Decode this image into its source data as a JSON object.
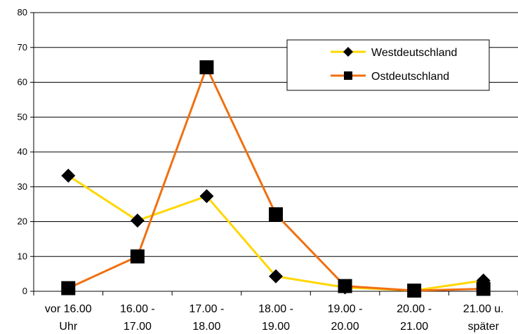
{
  "chart_data": {
    "type": "line",
    "title": "",
    "xlabel": "",
    "ylabel": "",
    "ylim": [
      0,
      80
    ],
    "yticks": [
      0,
      10,
      20,
      30,
      40,
      50,
      60,
      70,
      80
    ],
    "grid": "horizontal",
    "legend_position": "top-right",
    "categories": [
      [
        "vor 16.00",
        "Uhr"
      ],
      [
        "16.00 -",
        "17.00"
      ],
      [
        "17.00 -",
        "18.00"
      ],
      [
        "18.00 -",
        "19.00"
      ],
      [
        "19.00 -",
        "20.00"
      ],
      [
        "20.00 -",
        "21.00"
      ],
      [
        "21.00 u.",
        "später"
      ]
    ],
    "series": [
      {
        "name": "Westdeutschland",
        "color": "#FFD700",
        "marker": "diamond",
        "values": [
          33.2,
          20.3,
          27.3,
          4.3,
          1.1,
          0.2,
          3.1
        ]
      },
      {
        "name": "Ostdeutschland",
        "color": "#F07010",
        "marker": "square",
        "values": [
          0.9,
          10.0,
          64.3,
          22.1,
          1.5,
          0.2,
          0.7
        ]
      }
    ]
  }
}
